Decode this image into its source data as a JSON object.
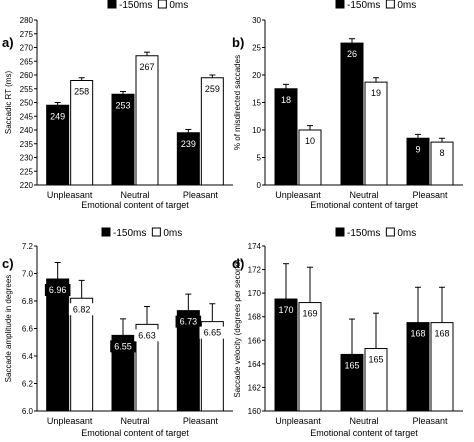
{
  "legend": {
    "series": [
      "-150ms",
      "0ms"
    ],
    "colors": [
      "#000000",
      "#ffffff"
    ]
  },
  "chart_data": [
    {
      "panel": "a)",
      "type": "bar",
      "categories": [
        "Unpleasant",
        "Neutral",
        "Pleasant"
      ],
      "xlabel": "Emotional content of target",
      "ylabel": "Saccadic RT (ms)",
      "ylim": [
        220,
        280
      ],
      "yticks": [
        220,
        225,
        230,
        235,
        240,
        245,
        250,
        255,
        260,
        265,
        270,
        275,
        280
      ],
      "grid": false,
      "legend_position": "top",
      "series": [
        {
          "name": "-150ms",
          "values": [
            249,
            253,
            239
          ],
          "labels": [
            "249",
            "253",
            "239"
          ],
          "errors": [
            1.0,
            1.0,
            1.2
          ]
        },
        {
          "name": "0ms",
          "values": [
            258,
            267,
            259
          ],
          "labels": [
            "258",
            "267",
            "259"
          ],
          "errors": [
            1.0,
            1.3,
            1.0
          ]
        }
      ]
    },
    {
      "panel": "b)",
      "type": "bar",
      "categories": [
        "Unpleasant",
        "Neutral",
        "Pleasant"
      ],
      "xlabel": "Emotional content of target",
      "ylabel": "% of misdirected saccades",
      "ylim": [
        0,
        30
      ],
      "yticks": [
        0,
        5,
        10,
        15,
        20,
        25,
        30
      ],
      "grid": false,
      "legend_position": "top",
      "series": [
        {
          "name": "-150ms",
          "values": [
            17.5,
            25.8,
            8.5
          ],
          "labels": [
            "18",
            "26",
            "9"
          ],
          "errors": [
            0.8,
            0.8,
            0.7
          ]
        },
        {
          "name": "0ms",
          "values": [
            10.0,
            18.7,
            7.8
          ],
          "labels": [
            "10",
            "19",
            "8"
          ],
          "errors": [
            0.8,
            0.8,
            0.7
          ]
        }
      ]
    },
    {
      "panel": "c)",
      "type": "bar",
      "categories": [
        "Unpleasant",
        "Neutral",
        "Pleasant"
      ],
      "xlabel": "Emotional content of target",
      "ylabel": "Saccade amplitude in degrees",
      "ylim": [
        6.0,
        7.2
      ],
      "yticks": [
        6.0,
        6.2,
        6.4,
        6.6,
        6.8,
        7.0,
        7.2
      ],
      "grid": false,
      "legend_position": "top",
      "series": [
        {
          "name": "-150ms",
          "values": [
            6.96,
            6.55,
            6.73
          ],
          "labels": [
            "6.96",
            "6.55",
            "6.73"
          ],
          "errors": [
            0.12,
            0.12,
            0.12
          ]
        },
        {
          "name": "0ms",
          "values": [
            6.82,
            6.63,
            6.65
          ],
          "labels": [
            "6.82",
            "6.63",
            "6.65"
          ],
          "errors": [
            0.13,
            0.13,
            0.13
          ]
        }
      ]
    },
    {
      "panel": "d)",
      "type": "bar",
      "categories": [
        "Unpleasant",
        "Neutral",
        "Pleasant"
      ],
      "xlabel": "Emotional content of target",
      "ylabel": "Saccade velocity (degrees per second)",
      "ylim": [
        160,
        174
      ],
      "yticks": [
        160,
        162,
        164,
        166,
        168,
        170,
        172,
        174
      ],
      "grid": false,
      "legend_position": "top",
      "series": [
        {
          "name": "-150ms",
          "values": [
            169.5,
            164.8,
            167.5
          ],
          "labels": [
            "170",
            "165",
            "168"
          ],
          "errors": [
            3.0,
            3.0,
            3.0
          ]
        },
        {
          "name": "0ms",
          "values": [
            169.2,
            165.3,
            167.5
          ],
          "labels": [
            "169",
            "165",
            "168"
          ],
          "errors": [
            3.0,
            3.0,
            3.0
          ]
        }
      ]
    }
  ]
}
